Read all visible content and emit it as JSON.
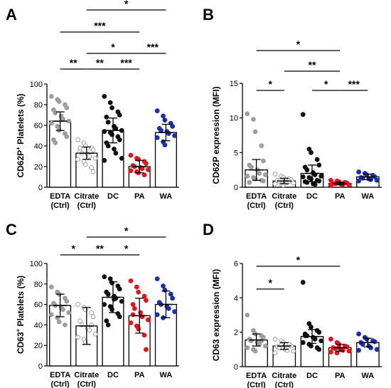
{
  "chart_data": [
    {
      "panel": "A",
      "type": "bar",
      "ylabel_main": "CD62P",
      "ylabel_sup": "+",
      "ylabel_rest": " Platelets (%)",
      "ylim": [
        0,
        100
      ],
      "yticks": [
        0,
        20,
        40,
        60,
        80,
        100
      ],
      "categories": [
        "EDTA\n(Ctrl)",
        "Citrate\n(Ctrl)",
        "DC",
        "PA",
        "WA"
      ],
      "values": [
        64,
        33,
        55,
        20,
        53
      ],
      "errors": [
        9,
        6,
        12,
        6,
        8
      ],
      "colors": [
        "#9e9e9e",
        "#9e9e9e",
        "#111111",
        "#e3141b",
        "#1a2fa8"
      ],
      "filled": [
        true,
        false,
        true,
        true,
        true
      ],
      "points": [
        [
          88,
          85,
          83,
          80,
          77,
          75,
          72,
          69,
          66,
          64,
          62,
          59,
          55,
          52,
          49,
          46,
          43
        ],
        [
          46,
          43,
          40,
          38,
          36,
          35,
          33,
          32,
          30,
          28,
          27,
          25,
          22,
          19,
          15,
          38
        ],
        [
          88,
          82,
          77,
          73,
          70,
          68,
          63,
          59,
          57,
          55,
          54,
          53,
          51,
          49,
          46,
          43,
          40,
          37,
          33,
          28,
          26
        ],
        [
          31,
          28,
          27,
          25,
          23,
          21,
          20,
          19,
          18,
          17,
          16,
          15,
          14,
          12
        ],
        [
          74,
          69,
          65,
          62,
          59,
          57,
          55,
          54,
          52,
          50,
          48,
          44,
          41
        ]
      ],
      "sig": [
        {
          "from": 1,
          "to": 4,
          "label": "*"
        },
        {
          "from": 0,
          "to": 3,
          "label": "***"
        },
        {
          "from": 1,
          "to": 3,
          "label": "*"
        },
        {
          "from": 3,
          "to": 4,
          "label": "***"
        },
        {
          "from": 0,
          "to": 1,
          "label": "**"
        },
        {
          "from": 1,
          "to": 2,
          "label": "**"
        },
        {
          "from": 2,
          "to": 3,
          "label": "***"
        }
      ]
    },
    {
      "panel": "B",
      "type": "bar",
      "ylabel_main": "CD62P expression (MFI)",
      "ylabel_sup": "",
      "ylabel_rest": "",
      "ylim": [
        0,
        15
      ],
      "yticks": [
        0,
        5,
        10,
        15
      ],
      "categories": [
        "EDTA\n(Ctrl)",
        "Citrate\n(Ctrl)",
        "DC",
        "PA",
        "WA"
      ],
      "values": [
        2.5,
        0.9,
        2.0,
        0.55,
        1.5
      ],
      "errors": [
        1.5,
        0.4,
        1.2,
        0.2,
        0.4
      ],
      "colors": [
        "#9e9e9e",
        "#9e9e9e",
        "#111111",
        "#e3141b",
        "#1a2fa8"
      ],
      "filled": [
        true,
        false,
        true,
        true,
        true
      ],
      "points": [
        [
          10.6,
          9.8,
          8.0,
          6.0,
          3.8,
          3.2,
          2.9,
          2.5,
          2.0,
          1.8,
          1.6,
          1.4,
          1.2,
          1.0,
          0.9,
          0.7
        ],
        [
          1.9,
          1.6,
          1.4,
          1.2,
          1.1,
          1.0,
          0.9,
          0.8,
          0.7,
          0.6,
          0.5,
          0.4,
          0.3,
          0.9
        ],
        [
          10.5,
          5.5,
          5.0,
          4.0,
          3.2,
          2.9,
          2.5,
          2.1,
          1.8,
          1.6,
          1.5,
          1.4,
          1.2,
          1.0,
          0.9,
          0.8,
          0.7,
          0.5,
          0.4
        ],
        [
          1.0,
          0.9,
          0.8,
          0.7,
          0.6,
          0.55,
          0.5,
          0.45,
          0.4,
          0.35,
          0.3,
          0.6
        ],
        [
          2.2,
          2.0,
          1.8,
          1.7,
          1.5,
          1.4,
          1.3,
          1.2,
          1.1,
          1.0,
          0.9
        ]
      ],
      "sig": [
        {
          "from": 0,
          "to": 3,
          "label": "*"
        },
        {
          "from": 1,
          "to": 3,
          "label": "**"
        },
        {
          "from": 0,
          "to": 1,
          "label": "*"
        },
        {
          "from": 2,
          "to": 3,
          "label": "*"
        },
        {
          "from": 3,
          "to": 4,
          "label": "***"
        }
      ]
    },
    {
      "panel": "C",
      "type": "bar",
      "ylabel_main": "CD63",
      "ylabel_sup": "+",
      "ylabel_rest": " Platelets (%)",
      "ylim": [
        0,
        100
      ],
      "yticks": [
        0,
        20,
        40,
        60,
        80,
        100
      ],
      "categories": [
        "EDTA\n(Ctrl)",
        "Citrate\n(Ctrl)",
        "DC",
        "PA",
        "WA"
      ],
      "values": [
        59,
        39,
        67,
        49,
        60
      ],
      "errors": [
        11,
        18,
        15,
        17,
        13
      ],
      "colors": [
        "#9e9e9e",
        "#9e9e9e",
        "#111111",
        "#e3141b",
        "#1a2fa8"
      ],
      "filled": [
        true,
        false,
        true,
        true,
        true
      ],
      "points": [
        [
          77,
          72,
          70,
          66,
          63,
          61,
          59,
          57,
          55,
          52,
          50,
          47,
          43,
          40
        ],
        [
          60,
          57,
          55,
          52,
          48,
          44,
          40,
          37,
          35,
          31,
          28,
          26,
          23,
          40
        ],
        [
          87,
          85,
          81,
          78,
          75,
          72,
          70,
          68,
          66,
          63,
          60,
          58,
          55,
          51,
          48,
          44,
          40,
          65
        ],
        [
          83,
          77,
          72,
          68,
          64,
          60,
          56,
          52,
          48,
          45,
          42,
          39,
          36,
          30,
          16,
          50
        ],
        [
          85,
          78,
          74,
          70,
          66,
          62,
          60,
          58,
          56,
          53,
          50,
          47
        ]
      ],
      "sig": [
        {
          "from": 1,
          "to": 4,
          "label": "*"
        },
        {
          "from": 0,
          "to": 1,
          "label": "*"
        },
        {
          "from": 1,
          "to": 2,
          "label": "**"
        },
        {
          "from": 2,
          "to": 3,
          "label": "*"
        }
      ]
    },
    {
      "panel": "D",
      "type": "bar",
      "ylabel_main": "CD63 expression (MFI)",
      "ylabel_sup": "",
      "ylabel_rest": "",
      "ylim": [
        0,
        6
      ],
      "yticks": [
        0,
        2,
        4,
        6
      ],
      "categories": [
        "EDTA\n(Ctrl)",
        "Citrate\n(Ctrl)",
        "DC",
        "PA",
        "WA"
      ],
      "values": [
        1.55,
        1.2,
        1.75,
        1.1,
        1.4
      ],
      "errors": [
        0.35,
        0.2,
        0.4,
        0.2,
        0.25
      ],
      "colors": [
        "#9e9e9e",
        "#9e9e9e",
        "#111111",
        "#e3141b",
        "#1a2fa8"
      ],
      "filled": [
        true,
        false,
        true,
        true,
        true
      ],
      "points": [
        [
          3.0,
          2.1,
          1.9,
          1.8,
          1.7,
          1.6,
          1.5,
          1.4,
          1.3,
          1.2,
          1.1,
          1.0,
          0.9,
          1.5
        ],
        [
          1.6,
          1.5,
          1.4,
          1.3,
          1.2,
          1.15,
          1.1,
          1.0,
          0.95,
          0.9,
          0.8,
          1.25
        ],
        [
          4.9,
          2.5,
          2.3,
          2.1,
          2.0,
          1.9,
          1.8,
          1.7,
          1.6,
          1.5,
          1.4,
          1.3,
          1.2,
          1.1,
          1.0,
          1.8
        ],
        [
          1.6,
          1.4,
          1.3,
          1.2,
          1.15,
          1.1,
          1.05,
          1.0,
          0.95,
          0.9,
          0.85,
          0.8,
          1.1
        ],
        [
          1.9,
          1.7,
          1.6,
          1.5,
          1.45,
          1.4,
          1.3,
          1.2,
          1.1,
          1.0,
          0.95
        ]
      ],
      "sig": [
        {
          "from": 0,
          "to": 3,
          "label": "*"
        },
        {
          "from": 0,
          "to": 1,
          "label": "*"
        }
      ]
    }
  ]
}
